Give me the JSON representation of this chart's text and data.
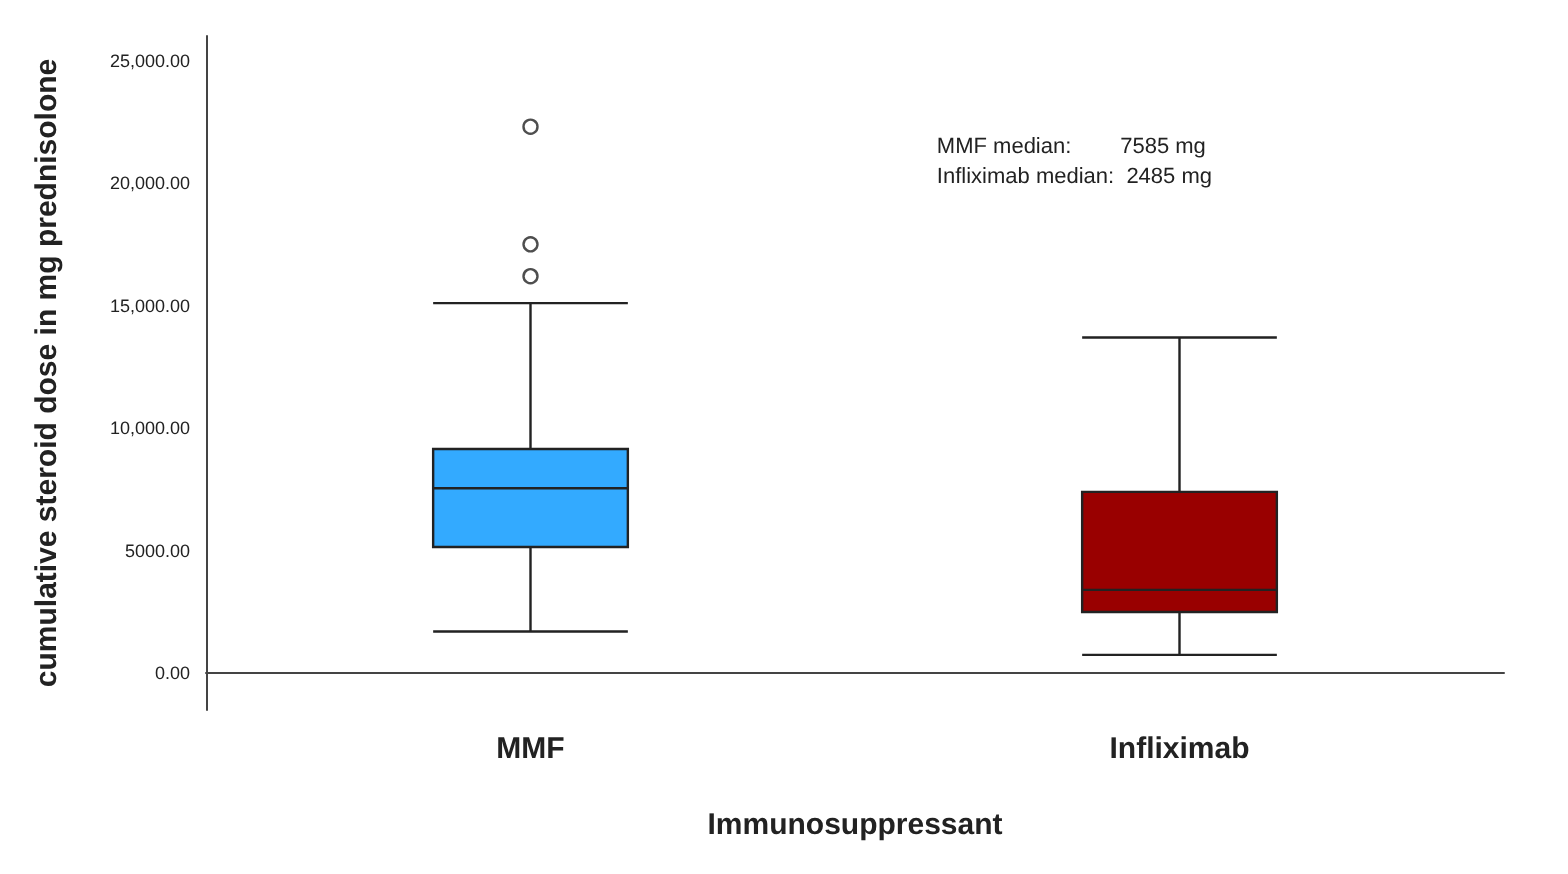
{
  "chart_data": {
    "type": "box",
    "xlabel": "Immunosuppressant",
    "ylabel": "cumulative steroid dose in mg prednisolone",
    "categories": [
      "MMF",
      "Infliximab"
    ],
    "colors": [
      "#33aaff",
      "#990000"
    ],
    "boxes": [
      {
        "low": 1700,
        "q1": 5150,
        "median": 7550,
        "q3": 9150,
        "high": 15100,
        "outliers": [
          16200,
          17500,
          22300
        ]
      },
      {
        "low": 750,
        "q1": 2500,
        "median": 3400,
        "q3": 7400,
        "high": 13700
      }
    ],
    "ylim": [
      -1500,
      26000
    ],
    "yticks": [
      {
        "value": 0,
        "label": "0.00"
      },
      {
        "value": 5000,
        "label": "5000.00"
      },
      {
        "value": 10000,
        "label": "10,000.00"
      },
      {
        "value": 15000,
        "label": "15,000.00"
      },
      {
        "value": 20000,
        "label": "20,000.00"
      },
      {
        "value": 25000,
        "label": "25,000.00"
      }
    ],
    "annotations": [
      "MMF median:        7585 mg",
      "Infliximab median:  2485 mg"
    ],
    "grid": false
  }
}
